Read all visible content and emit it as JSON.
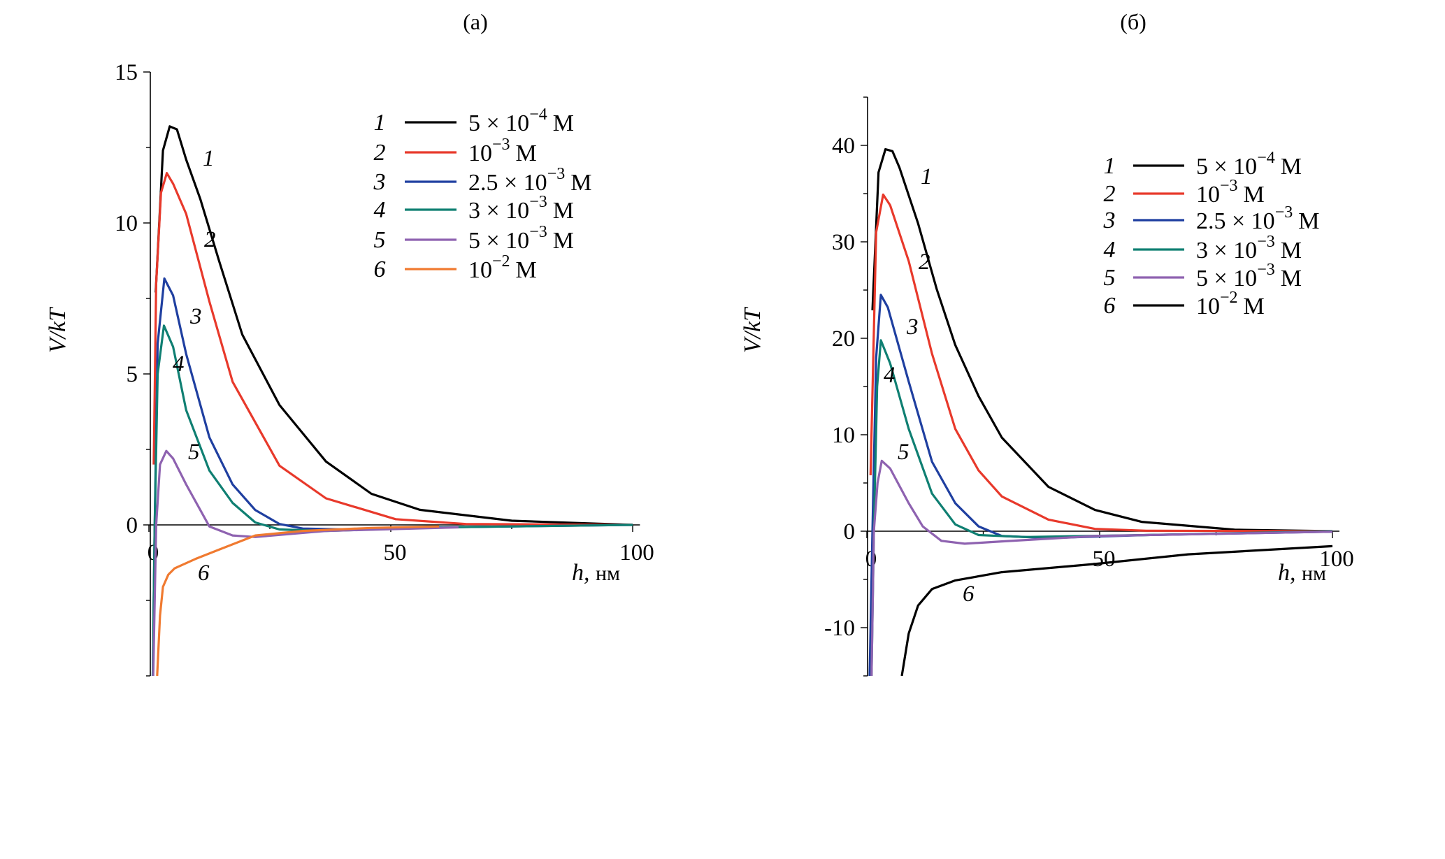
{
  "chart_data": [
    {
      "type": "line",
      "title": "(а)",
      "xlabel": "h, нм",
      "ylabel": "V/kT",
      "xlim": [
        0,
        100
      ],
      "ylim": [
        -5,
        15
      ],
      "xticks": [
        "0",
        "50",
        "100"
      ],
      "xtick_values": [
        0,
        50,
        100
      ],
      "yticks": [
        "0",
        "5",
        "10",
        "15"
      ],
      "ytick_values": [
        0,
        5,
        10,
        15
      ],
      "legend_position": "top-right",
      "series": [
        {
          "label": "1",
          "name": "5 × 10−4 М",
          "base": "5 × 10",
          "exp": "−4",
          "unit": "М",
          "color": "#000000",
          "x": [
            1.4,
            2.9,
            4.3,
            5.8,
            7.7,
            10.6,
            14.5,
            19.3,
            27,
            36.6,
            46,
            56,
            75,
            100
          ],
          "y": [
            7.7,
            12.4,
            13.2,
            13.1,
            12.1,
            10.8,
            8.75,
            6.3,
            3.97,
            2.1,
            1.03,
            0.5,
            0.14,
            0
          ]
        },
        {
          "label": "2",
          "name": "10−3 М",
          "base": "10",
          "exp": "−3",
          "unit": "М",
          "color": "#e8392b",
          "x": [
            1.0,
            1.5,
            2.5,
            3.7,
            5,
            7.7,
            12.5,
            17.3,
            27,
            36.6,
            51,
            65.5,
            100
          ],
          "y": [
            2,
            8,
            11,
            11.65,
            11.3,
            10.3,
            7.4,
            4.74,
            1.96,
            0.88,
            0.19,
            0.03,
            0
          ]
        },
        {
          "label": "3",
          "name": "2.5 × 10−3 М",
          "base": "2.5 × 10",
          "exp": "−3",
          "unit": "М",
          "color": "#1f3fa0",
          "x": [
            0.8,
            1.2,
            1.8,
            3.2,
            5,
            7.7,
            12.5,
            17.3,
            22,
            27,
            31.8,
            41,
            60,
            100
          ],
          "y": [
            -5,
            0,
            6,
            8.16,
            7.6,
            5.66,
            2.9,
            1.34,
            0.49,
            0.03,
            -0.12,
            -0.15,
            -0.08,
            0
          ]
        },
        {
          "label": "4",
          "name": "3 × 10−3 М",
          "base": "3 × 10",
          "exp": "−3",
          "unit": "М",
          "color": "#0f7f72",
          "x": [
            0.8,
            1.2,
            1.8,
            3.1,
            5,
            7.7,
            12.5,
            17.3,
            22,
            27,
            36.6,
            60,
            100
          ],
          "y": [
            -5,
            0,
            5,
            6.6,
            5.9,
            3.8,
            1.8,
            0.73,
            0.08,
            -0.15,
            -0.2,
            -0.08,
            0
          ]
        },
        {
          "label": "5",
          "name": "5 × 10−3 М",
          "base": "5 × 10",
          "exp": "−3",
          "unit": "М",
          "color": "#8e62b0",
          "x": [
            0.9,
            1.5,
            2.3,
            3.6,
            5,
            7.7,
            12.5,
            17.3,
            22,
            36.6,
            64
          ],
          "y": [
            -5,
            0,
            2,
            2.45,
            2.2,
            1.34,
            -0.05,
            -0.35,
            -0.4,
            -0.2,
            -0.08
          ]
        },
        {
          "label": "6",
          "name": "10−2 М",
          "base": "10",
          "exp": "−2",
          "unit": "М",
          "color": "#f07a30",
          "x": [
            1.7,
            2.3,
            2.9,
            4,
            5.3,
            9.6,
            14.5,
            22,
            31.8,
            46,
            60
          ],
          "y": [
            -5,
            -3,
            -2.05,
            -1.65,
            -1.44,
            -1.13,
            -0.82,
            -0.35,
            -0.2,
            -0.1,
            -0.05
          ]
        }
      ]
    },
    {
      "type": "line",
      "title": "(б)",
      "xlabel": "h, нм",
      "ylabel": "V/kT",
      "xlim": [
        0,
        100
      ],
      "ylim": [
        -15,
        45
      ],
      "xticks": [
        "0",
        "50",
        "100"
      ],
      "xtick_values": [
        0,
        50,
        100
      ],
      "yticks": [
        "-10",
        "0",
        "10",
        "20",
        "30",
        "40"
      ],
      "ytick_values": [
        -10,
        0,
        10,
        20,
        30,
        40
      ],
      "legend_position": "top-right",
      "series": [
        {
          "label": "1",
          "name": "5 × 10−4 М",
          "base": "5 × 10",
          "exp": "−4",
          "unit": "М",
          "color": "#000000",
          "x": [
            1.2,
            2.5,
            4,
            5.5,
            7,
            11,
            15,
            19,
            24,
            29,
            39,
            49,
            59,
            79,
            100
          ],
          "y": [
            22.9,
            37.2,
            39.6,
            39.4,
            37.7,
            31.9,
            25.1,
            19.3,
            14,
            9.7,
            4.6,
            2.2,
            0.97,
            0.15,
            0
          ]
        },
        {
          "label": "2",
          "name": "10−3 М",
          "base": "10",
          "exp": "−3",
          "unit": "М",
          "color": "#e8392b",
          "x": [
            0.8,
            2,
            3.5,
            5,
            9,
            14,
            19,
            24,
            29,
            39,
            49,
            60,
            100
          ],
          "y": [
            5.8,
            31,
            34.9,
            33.8,
            28,
            18.4,
            10.6,
            6.3,
            3.6,
            1.2,
            0.24,
            0.05,
            0
          ]
        },
        {
          "label": "3",
          "name": "2.5 × 10−3 М",
          "base": "2.5 × 10",
          "exp": "−3",
          "unit": "М",
          "color": "#1f3fa0",
          "x": [
            0.6,
            1.2,
            2,
            3,
            4.5,
            9,
            14,
            19,
            24,
            29,
            39,
            60,
            100
          ],
          "y": [
            -15,
            0,
            18,
            24.5,
            23.2,
            15.5,
            7.2,
            2.9,
            0.5,
            -0.5,
            -0.7,
            -0.4,
            -0.05
          ]
        },
        {
          "label": "4",
          "name": "3 × 10−3 М",
          "base": "3 × 10",
          "exp": "−3",
          "unit": "М",
          "color": "#0f7f72",
          "x": [
            1,
            1.5,
            2.2,
            3,
            5,
            9,
            14,
            19,
            24,
            34,
            60,
            100
          ],
          "y": [
            -15,
            0,
            15,
            19.8,
            17.4,
            10.6,
            3.9,
            0.7,
            -0.4,
            -0.6,
            -0.4,
            0
          ]
        },
        {
          "label": "5",
          "name": "5 × 10−3 М",
          "base": "5 × 10",
          "exp": "−3",
          "unit": "М",
          "color": "#8e62b0",
          "x": [
            1,
            1.5,
            2.3,
            3.2,
            5,
            9,
            12,
            16,
            21,
            29,
            49,
            100
          ],
          "y": [
            -15,
            0,
            5,
            7.3,
            6.5,
            2.9,
            0.5,
            -1,
            -1.3,
            -1.06,
            -0.5,
            -0.05
          ]
        },
        {
          "label": "6",
          "name": "10−2 М",
          "base": "10",
          "exp": "−2",
          "unit": "М",
          "color": "#000000",
          "x": [
            7.5,
            9,
            11,
            14,
            19,
            29,
            49,
            69,
            100
          ],
          "y": [
            -15,
            -10.6,
            -7.7,
            -6,
            -5.1,
            -4.25,
            -3.4,
            -2.4,
            -1.55
          ]
        }
      ]
    }
  ]
}
